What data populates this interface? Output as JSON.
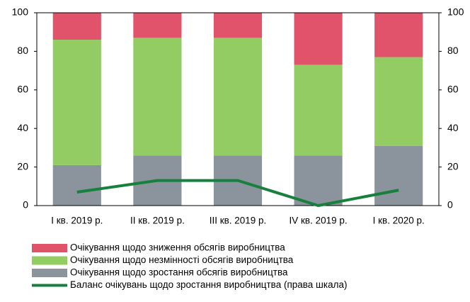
{
  "chart_data": {
    "type": "stacked_bar_line",
    "categories": [
      "I кв. 2019 р.",
      "II кв. 2019 р.",
      "III кв. 2019 р.",
      "IV кв. 2019 р.",
      "I кв. 2020 р."
    ],
    "series": [
      {
        "name": "Очікування щодо зниження обсягів виробництва",
        "color": "#e0536b",
        "values": [
          14,
          13,
          13,
          27,
          23
        ]
      },
      {
        "name": "Очікування щодо незмінності обсягів виробництва",
        "color": "#92cc63",
        "values": [
          65,
          61,
          61,
          47,
          46
        ]
      },
      {
        "name": "Очікування щодо зростання обсягів виробництва",
        "color": "#8b949c",
        "values": [
          21,
          26,
          26,
          26,
          31
        ]
      },
      {
        "name": "Баланс очікувань щодо зростання виробництва (права шкала)",
        "color": "#16803c",
        "values": [
          7,
          13,
          13,
          0,
          8
        ],
        "axis": "y2",
        "kind": "line"
      }
    ],
    "ylim": [
      0,
      100
    ],
    "yticks": [
      0,
      20,
      40,
      60,
      80,
      100
    ],
    "y2lim": [
      0,
      100
    ],
    "y2ticks": [
      0,
      20,
      40,
      60,
      80,
      100
    ]
  }
}
